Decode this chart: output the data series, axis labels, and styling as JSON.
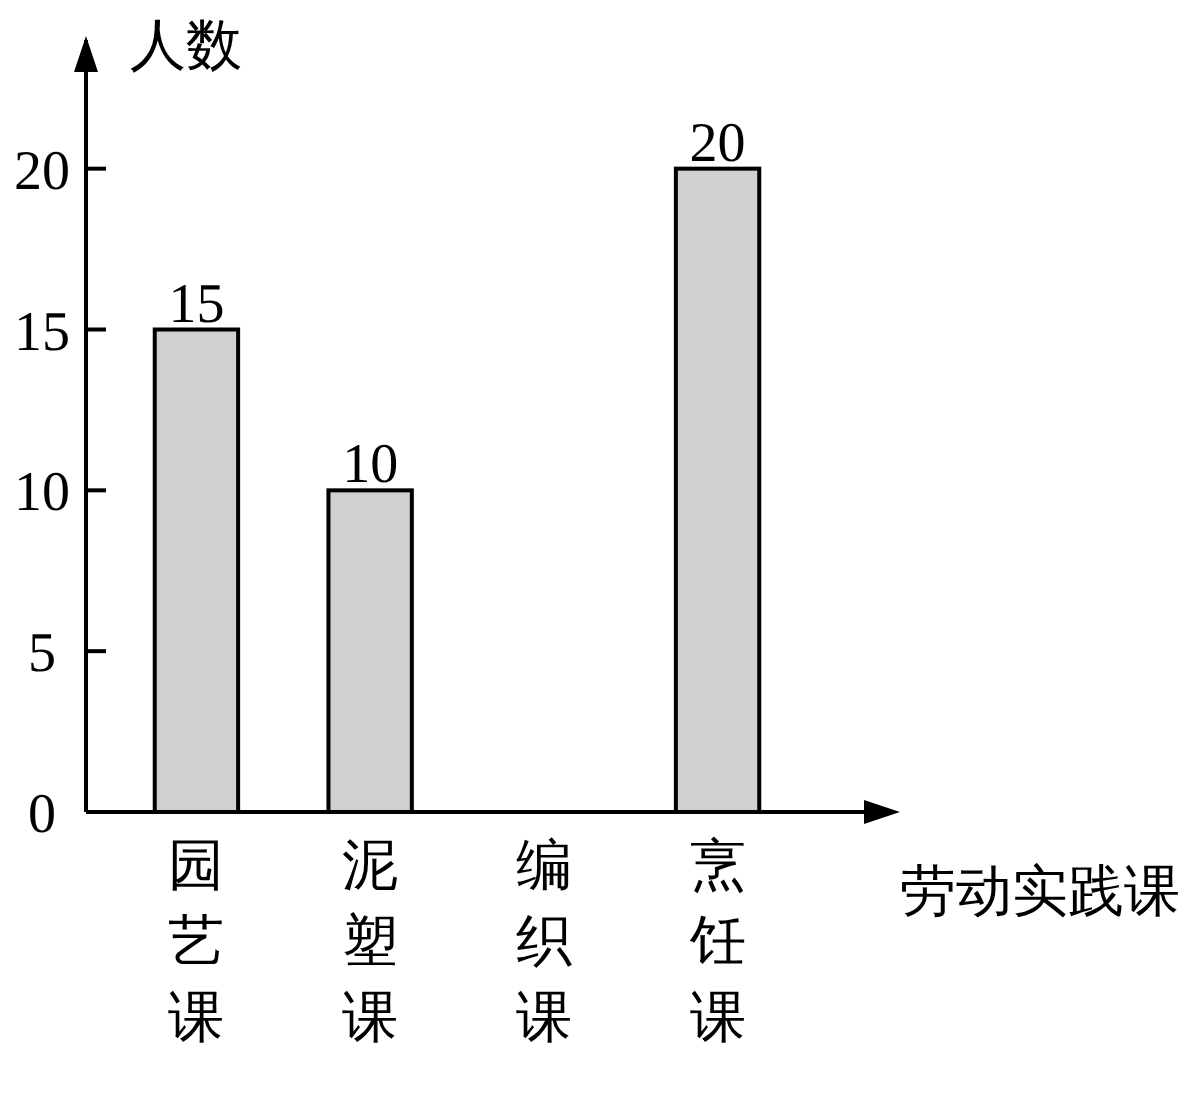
{
  "chart_data": {
    "type": "bar",
    "xlabel": "劳动实践课",
    "ylabel": "人数",
    "categories": [
      "园艺课",
      "泥塑课",
      "编织课",
      "烹饪课"
    ],
    "values": [
      15,
      10,
      null,
      20
    ],
    "color": "#d0d0d0",
    "ylim": [
      0,
      24
    ],
    "yticks": [
      0,
      5,
      10,
      15,
      20
    ],
    "data_labels": true,
    "grid": false
  }
}
